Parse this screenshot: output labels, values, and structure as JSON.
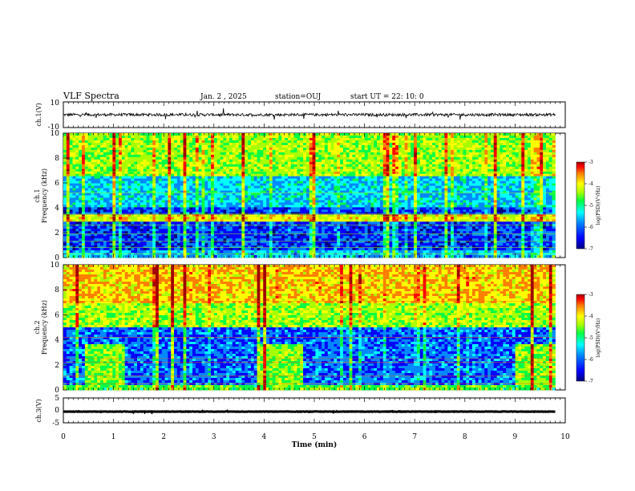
{
  "header": {
    "title": "VLF Spectra",
    "date": "Jan. 2 , 2025",
    "station": "station=OUJ",
    "start": "start UT =  22: 10: 0"
  },
  "chart_data": [
    {
      "type": "line",
      "panel": "ch1-waveform",
      "ylabel": "ch.1(V)",
      "ylim": [
        -10,
        10
      ],
      "y_ticks": [
        "10",
        "-10"
      ],
      "x_range": [
        0,
        10
      ],
      "mean_level": 0
    },
    {
      "type": "heatmap",
      "panel": "ch1-spectrogram",
      "ylabel": "ch.1",
      "ylabel2": "Frequency (kHz)",
      "ylim": [
        0,
        10
      ],
      "y_ticks": [
        "0",
        "2",
        "4",
        "6",
        "8",
        "10"
      ],
      "x_range": [
        0,
        9.8
      ],
      "colorbar": {
        "label": "log(PSD)(V²/Hz)",
        "range": [
          -7,
          -3
        ],
        "ticks": [
          "-3",
          "-4",
          "-5",
          "-6",
          "-7"
        ]
      }
    },
    {
      "type": "heatmap",
      "panel": "ch2-spectrogram",
      "ylabel": "ch.2",
      "ylabel2": "Frequency (kHz)",
      "ylim": [
        0,
        10
      ],
      "y_ticks": [
        "0",
        "2",
        "4",
        "6",
        "8",
        "10"
      ],
      "x_range": [
        0,
        9.8
      ],
      "colorbar": {
        "label": "log(PSD)(V²/Hz)",
        "range": [
          -7,
          -3
        ],
        "ticks": [
          "-3",
          "-4",
          "-5",
          "-6",
          "-7"
        ]
      }
    },
    {
      "type": "line",
      "panel": "ch3-waveform",
      "ylabel": "ch.3(V)",
      "ylim": [
        -5,
        5
      ],
      "y_ticks": [
        "5",
        "0",
        "-5"
      ],
      "x_range": [
        0,
        9.8
      ],
      "mean_level": -0.5
    }
  ],
  "x_axis": {
    "label": "Time (min)",
    "ticks": [
      "0",
      "1",
      "2",
      "3",
      "4",
      "5",
      "6",
      "7",
      "8",
      "9",
      "10"
    ],
    "range": [
      0,
      10
    ]
  },
  "colors": {
    "colormap": [
      "#00007f",
      "#0000ff",
      "#0088ff",
      "#00ffff",
      "#00ff44",
      "#a8ff00",
      "#ffff00",
      "#ff8000",
      "#ff0000",
      "#a00000"
    ]
  }
}
